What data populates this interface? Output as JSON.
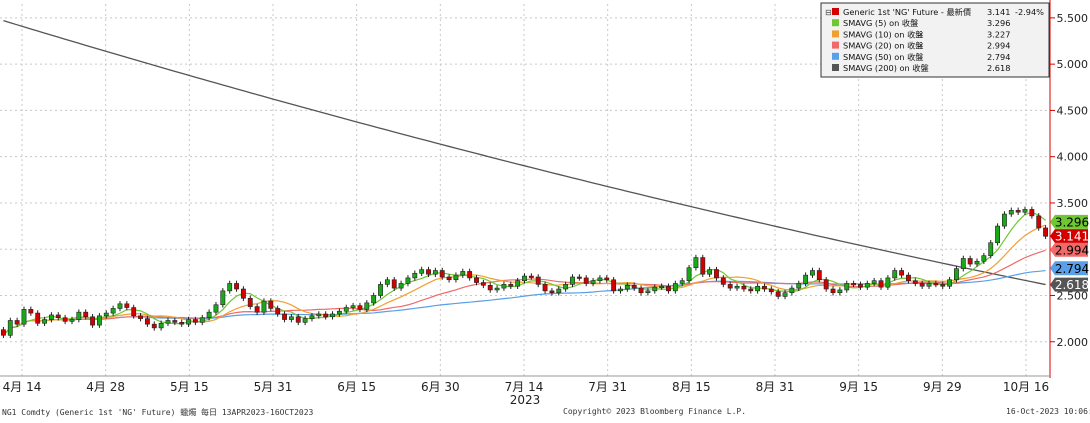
{
  "chart_data": {
    "type": "candlestick",
    "x_year_label": "2023",
    "x_tick_labels": [
      "4月 14",
      "4月 28",
      "5月 15",
      "5月 31",
      "6月 15",
      "6月 30",
      "7月 14",
      "7月 31",
      "8月 15",
      "8月 31",
      "9月 15",
      "9月 29",
      "10月 16"
    ],
    "y_tick_labels": [
      "2.000",
      "2.500",
      "3.000",
      "3.500",
      "4.000",
      "4.500",
      "5.000",
      "5.500"
    ],
    "ylim": [
      1.63,
      5.65
    ],
    "grid": true,
    "legend_position": "top-right",
    "legend": [
      {
        "label": "Generic 1st 'NG' Future - 最新價",
        "value": "3.141",
        "change": "-2.94%",
        "color": "#d40000"
      },
      {
        "label": "SMAVG (5)  on 收盤",
        "value": "3.296",
        "color": "#6ec833"
      },
      {
        "label": "SMAVG (10)  on 收盤",
        "value": "3.227",
        "color": "#f0a030"
      },
      {
        "label": "SMAVG (20)  on 收盤",
        "value": "2.994",
        "color": "#f06a6a"
      },
      {
        "label": "SMAVG (50)  on 收盤",
        "value": "2.794",
        "color": "#5aa0e8"
      },
      {
        "label": "SMAVG (200)  on 收盤",
        "value": "2.618",
        "color": "#555555"
      }
    ],
    "last_value_tags": [
      {
        "value": "3.296",
        "y": 3.296,
        "bg": "#6ec833",
        "fg": "#000000"
      },
      {
        "value": "3.141",
        "y": 3.141,
        "bg": "#d40000",
        "fg": "#ffffff"
      },
      {
        "value": "2.994",
        "y": 2.994,
        "bg": "#f06a6a",
        "fg": "#000000"
      },
      {
        "value": "2.794",
        "y": 2.794,
        "bg": "#5aa0e8",
        "fg": "#000000"
      },
      {
        "value": "2.618",
        "y": 2.618,
        "bg": "#555555",
        "fg": "#ffffff"
      }
    ],
    "colors": {
      "up": "#1aa81a",
      "down": "#d40000",
      "grid": "#c8c8c8",
      "axis": "#d40000"
    },
    "closes": [
      2.07,
      2.23,
      2.19,
      2.35,
      2.31,
      2.2,
      2.24,
      2.29,
      2.26,
      2.22,
      2.24,
      2.32,
      2.27,
      2.18,
      2.28,
      2.31,
      2.36,
      2.41,
      2.37,
      2.28,
      2.25,
      2.19,
      2.15,
      2.2,
      2.23,
      2.21,
      2.19,
      2.24,
      2.21,
      2.26,
      2.32,
      2.4,
      2.55,
      2.63,
      2.57,
      2.47,
      2.38,
      2.32,
      2.44,
      2.36,
      2.3,
      2.24,
      2.27,
      2.21,
      2.25,
      2.28,
      2.3,
      2.27,
      2.3,
      2.33,
      2.37,
      2.39,
      2.35,
      2.42,
      2.5,
      2.62,
      2.67,
      2.58,
      2.63,
      2.69,
      2.74,
      2.78,
      2.73,
      2.77,
      2.7,
      2.67,
      2.72,
      2.76,
      2.69,
      2.64,
      2.61,
      2.56,
      2.58,
      2.62,
      2.6,
      2.66,
      2.71,
      2.7,
      2.62,
      2.55,
      2.53,
      2.57,
      2.62,
      2.7,
      2.69,
      2.63,
      2.66,
      2.69,
      2.67,
      2.55,
      2.57,
      2.61,
      2.58,
      2.53,
      2.55,
      2.59,
      2.6,
      2.55,
      2.63,
      2.66,
      2.8,
      2.91,
      2.73,
      2.78,
      2.69,
      2.62,
      2.58,
      2.6,
      2.57,
      2.55,
      2.6,
      2.57,
      2.54,
      2.49,
      2.53,
      2.58,
      2.63,
      2.72,
      2.77,
      2.67,
      2.57,
      2.53,
      2.56,
      2.63,
      2.62,
      2.59,
      2.63,
      2.66,
      2.59,
      2.69,
      2.77,
      2.72,
      2.66,
      2.63,
      2.6,
      2.63,
      2.62,
      2.6,
      2.67,
      2.79,
      2.9,
      2.84,
      2.87,
      2.93,
      3.07,
      3.25,
      3.38,
      3.42,
      3.4,
      3.43,
      3.36,
      3.23,
      3.14
    ]
  }
}
